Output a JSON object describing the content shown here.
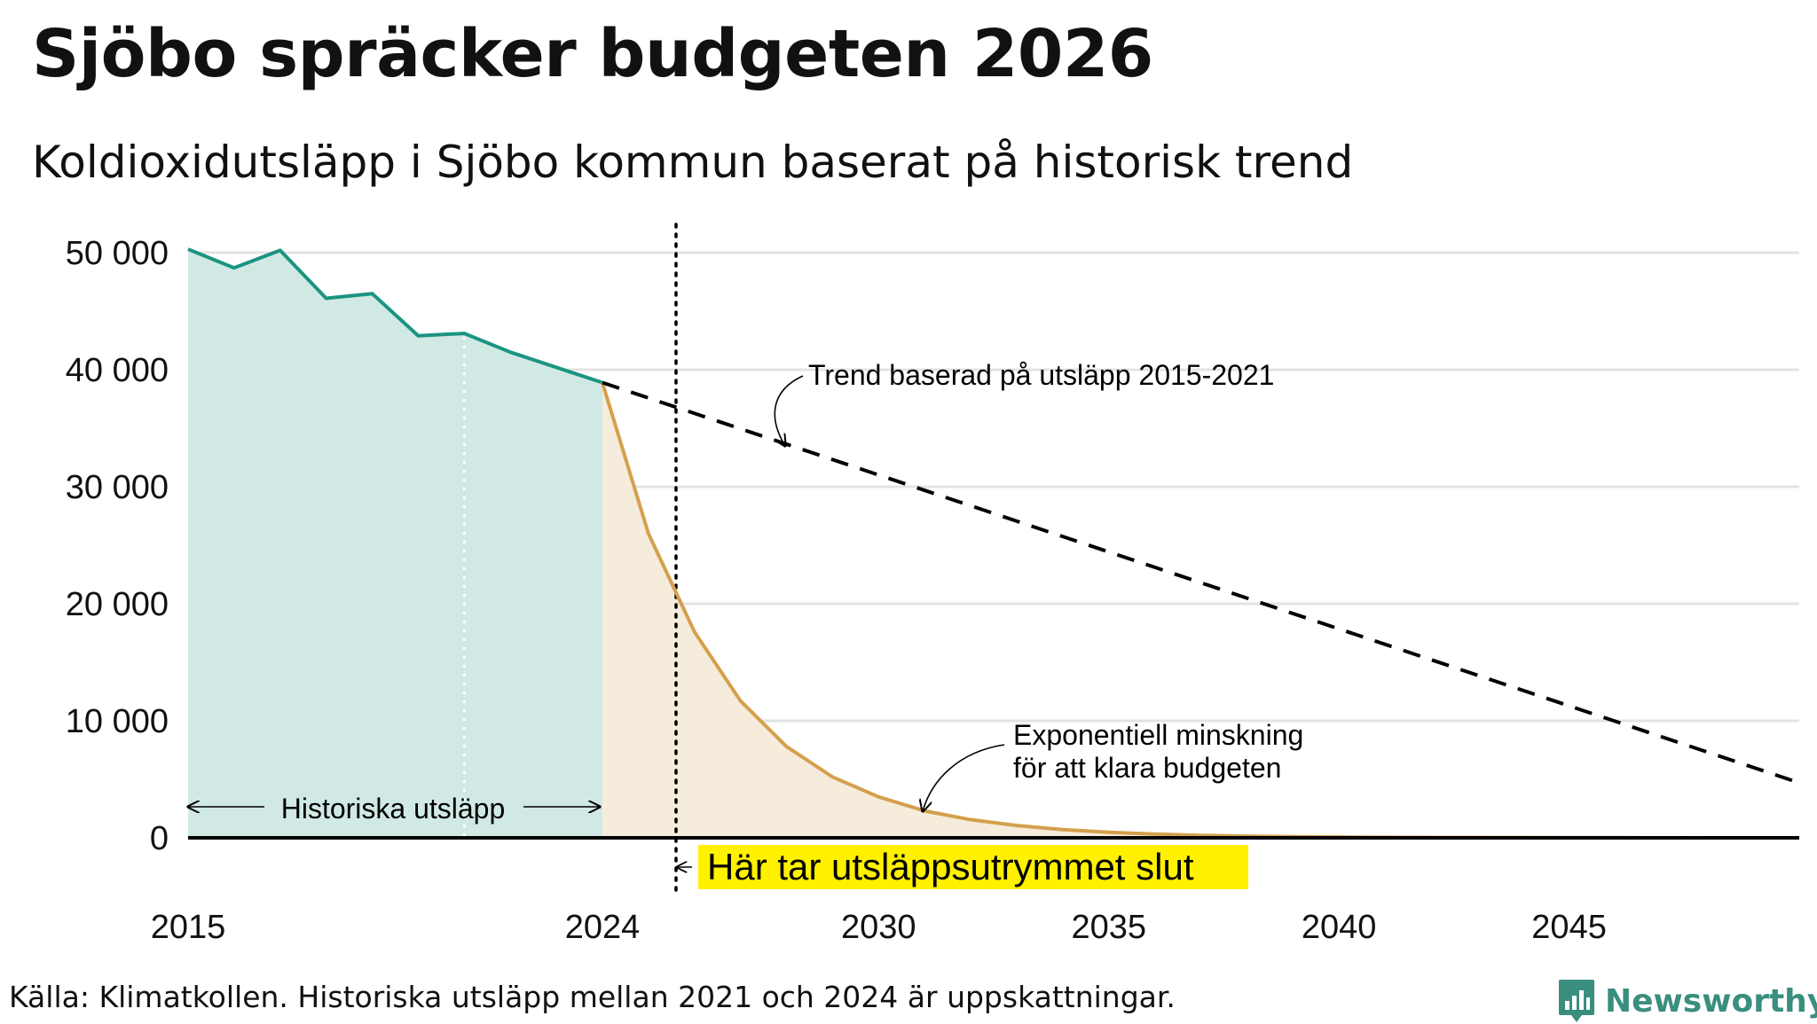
{
  "title": "Sjöbo spräcker budgeten 2026",
  "subtitle": "Koldioxidutsläpp i Sjöbo kommun baserat på historisk trend",
  "source": "Källa: Klimatkollen. Historiska utsläpp mellan 2021 och 2024 är uppskattningar.",
  "logo": {
    "text": "Newsworthy",
    "icon": "bar-chart-badge-icon"
  },
  "colors": {
    "historical_line": "#1a9481",
    "historical_fill": "#d1e9e4",
    "budget_line": "#d4a04e",
    "budget_fill": "#f6ecdb",
    "trend": "#000000",
    "grid": "#e3e3e3",
    "highlight": "#fff100"
  },
  "chart_data": {
    "type": "area",
    "xlim": [
      2015,
      2050
    ],
    "ylim": [
      0,
      50000
    ],
    "x_ticks": [
      "2015",
      "2024",
      "2030",
      "2035",
      "2040",
      "2045"
    ],
    "y_ticks": [
      0,
      10000,
      20000,
      30000,
      40000,
      50000
    ],
    "y_tick_labels": [
      "0",
      "10 000",
      "20 000",
      "30 000",
      "40 000",
      "50 000"
    ],
    "series": [
      {
        "name": "Historiska utsläpp",
        "x": [
          2015,
          2016,
          2017,
          2018,
          2019,
          2020,
          2021,
          2022,
          2023,
          2024
        ],
        "values": [
          50300,
          48700,
          50200,
          46100,
          46500,
          42900,
          43100,
          41500,
          40200,
          38900
        ]
      },
      {
        "name": "Exponentiell minskning för att klara budgeten",
        "x": [
          2024,
          2025,
          2026,
          2027,
          2028,
          2029,
          2030,
          2031,
          2032,
          2033,
          2034,
          2035,
          2036,
          2037,
          2038,
          2039,
          2040,
          2042,
          2044,
          2046,
          2048,
          2050
        ],
        "values": [
          38900,
          26000,
          17600,
          11700,
          7800,
          5200,
          3500,
          2300,
          1550,
          1050,
          700,
          470,
          320,
          210,
          140,
          95,
          65,
          30,
          15,
          8,
          4,
          2
        ]
      },
      {
        "name": "Trend baserad på utsläpp 2015-2021",
        "style": "dashed",
        "x": [
          2024,
          2050
        ],
        "values": [
          38900,
          4700
        ]
      }
    ],
    "reference_lines": [
      {
        "x": 2021,
        "style": "dotted-white"
      },
      {
        "x": 2025.6,
        "style": "dotted-black"
      }
    ],
    "annotations": {
      "trend": "Trend baserad på utsläpp 2015-2021",
      "exp_line1": "Exponentiell minskning",
      "exp_line2": "för att klara budgeten",
      "historical": "Historiska utsläpp",
      "budget_end": "Här tar utsläppsutrymmet slut"
    }
  }
}
